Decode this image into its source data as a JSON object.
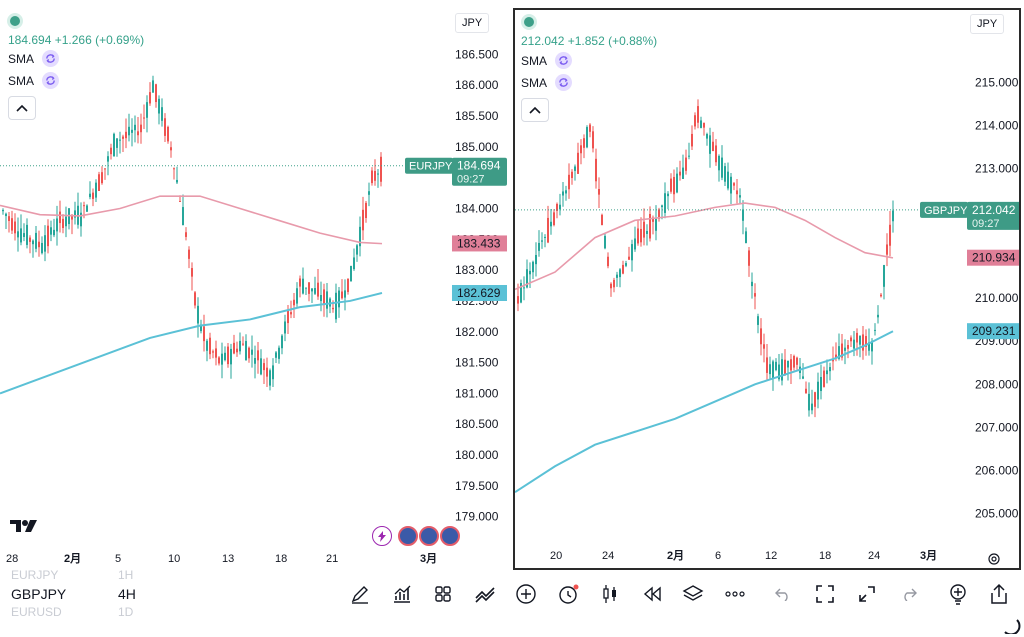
{
  "left_chart": {
    "quote": "184.694 +1.266 (+0.69%)",
    "indicators": [
      {
        "label": "SMA"
      },
      {
        "label": "SMA"
      }
    ],
    "currency": "JPY",
    "price_axis": [
      "186.500",
      "186.000",
      "185.500",
      "185.000",
      "184.500",
      "184.000",
      "183.500",
      "183.000",
      "182.500",
      "182.000",
      "181.500",
      "181.000",
      "180.500",
      "180.000",
      "179.500",
      "179.000"
    ],
    "price_range": [
      178.8,
      186.75
    ],
    "time_axis": [
      "28",
      "2月",
      "5",
      "10",
      "13",
      "18",
      "21",
      "3月"
    ],
    "last_price": {
      "symbol": "EURJPY",
      "price": "184.694",
      "countdown": "09:27"
    },
    "sma_labels": [
      {
        "value": "183.433",
        "color": "#e07f98"
      },
      {
        "value": "182.629",
        "color": "#5bc1d6"
      }
    ]
  },
  "right_chart": {
    "quote": "212.042 +1.852 (+0.88%)",
    "indicators": [
      {
        "label": "SMA"
      },
      {
        "label": "SMA"
      }
    ],
    "currency": "JPY",
    "price_axis": [
      "215.000",
      "214.000",
      "213.000",
      "212.000",
      "211.000",
      "210.000",
      "209.000",
      "208.000",
      "207.000",
      "206.000",
      "205.000"
    ],
    "price_range": [
      204.6,
      215.4
    ],
    "time_axis": [
      "20",
      "24",
      "2月",
      "6",
      "12",
      "18",
      "24",
      "3月"
    ],
    "last_price": {
      "symbol": "GBPJPY",
      "price": "212.042",
      "countdown": "09:27"
    },
    "sma_labels": [
      {
        "value": "210.934",
        "color": "#e07f98"
      },
      {
        "value": "209.231",
        "color": "#5bc1d6"
      }
    ]
  },
  "symbol_picker": {
    "above": {
      "symbol": "EURJPY",
      "interval": "1H"
    },
    "current": {
      "symbol": "GBPJPY",
      "interval": "4H"
    },
    "below": {
      "symbol": "EURUSD",
      "interval": "1D"
    }
  },
  "colors": {
    "up": "#26a69a",
    "down": "#ef5350",
    "sma_long": "#5bc1d6",
    "sma_mid": "#e89aab",
    "accent": "#3ea089"
  },
  "toolbar_icons": [
    "pen-icon",
    "indicators-icon",
    "grid-layout-icon",
    "compare-icon",
    "add-icon",
    "alert-clock-icon",
    "candles-icon",
    "replay-icon",
    "layers-icon",
    "more-icon",
    "undo-icon",
    "fullscreen-icon",
    "expand-icon",
    "redo-icon",
    "lightbulb-icon",
    "share-icon"
  ]
}
